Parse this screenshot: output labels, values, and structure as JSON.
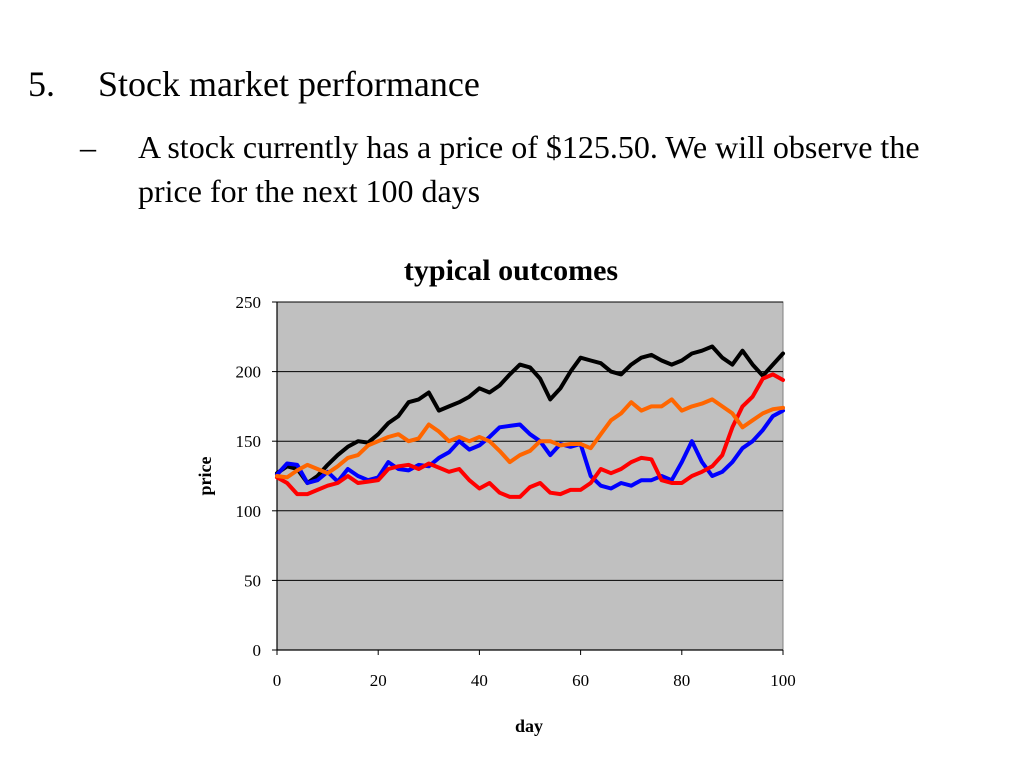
{
  "slide": {
    "bullet_number": "5.",
    "bullet_text": "Stock market performance",
    "sub_dash": "–",
    "sub_text": "A stock currently has a price of $125.50. We will observe the price for the next 100 days"
  },
  "chart_data": {
    "type": "line",
    "title": "typical outcomes",
    "xlabel": "day",
    "ylabel": "price",
    "xlim": [
      0,
      100
    ],
    "ylim": [
      0,
      250
    ],
    "xticks": [
      0,
      20,
      40,
      60,
      80,
      100
    ],
    "yticks": [
      0,
      50,
      100,
      150,
      200,
      250
    ],
    "grid": "horizontal",
    "plot_background": "#c0c0c0",
    "series": [
      {
        "color": "#000000",
        "x": [
          0,
          2,
          4,
          6,
          8,
          10,
          12,
          14,
          16,
          18,
          20,
          22,
          24,
          26,
          28,
          30,
          32,
          34,
          36,
          38,
          40,
          42,
          44,
          46,
          48,
          50,
          52,
          54,
          56,
          58,
          60,
          62,
          64,
          66,
          68,
          70,
          72,
          74,
          76,
          78,
          80,
          82,
          84,
          86,
          88,
          90,
          92,
          94,
          96,
          98,
          100
        ],
        "y": [
          127,
          132,
          130,
          120,
          125,
          133,
          140,
          146,
          150,
          149,
          155,
          163,
          168,
          178,
          180,
          185,
          172,
          175,
          178,
          182,
          188,
          185,
          190,
          198,
          205,
          203,
          195,
          180,
          188,
          200,
          210,
          208,
          206,
          200,
          198,
          205,
          210,
          212,
          208,
          205,
          208,
          213,
          215,
          218,
          210,
          205,
          215,
          205,
          197,
          205,
          213
        ]
      },
      {
        "color": "#0000ff",
        "x": [
          0,
          2,
          4,
          6,
          8,
          10,
          12,
          14,
          16,
          18,
          20,
          22,
          24,
          26,
          28,
          30,
          32,
          34,
          36,
          38,
          40,
          42,
          44,
          46,
          48,
          50,
          52,
          54,
          56,
          58,
          60,
          62,
          64,
          66,
          68,
          70,
          72,
          74,
          76,
          78,
          80,
          82,
          84,
          86,
          88,
          90,
          92,
          94,
          96,
          98,
          100
        ],
        "y": [
          126,
          134,
          133,
          120,
          122,
          128,
          121,
          130,
          125,
          122,
          124,
          135,
          130,
          129,
          133,
          132,
          138,
          142,
          150,
          144,
          147,
          153,
          160,
          161,
          162,
          155,
          150,
          140,
          148,
          146,
          148,
          125,
          118,
          116,
          120,
          118,
          122,
          122,
          125,
          122,
          135,
          150,
          135,
          125,
          128,
          135,
          145,
          150,
          158,
          168,
          172
        ]
      },
      {
        "color": "#ff0000",
        "x": [
          0,
          2,
          4,
          6,
          8,
          10,
          12,
          14,
          16,
          18,
          20,
          22,
          24,
          26,
          28,
          30,
          32,
          34,
          36,
          38,
          40,
          42,
          44,
          46,
          48,
          50,
          52,
          54,
          56,
          58,
          60,
          62,
          64,
          66,
          68,
          70,
          72,
          74,
          76,
          78,
          80,
          82,
          84,
          86,
          88,
          90,
          92,
          94,
          96,
          98,
          100
        ],
        "y": [
          124,
          120,
          112,
          112,
          115,
          118,
          120,
          125,
          120,
          121,
          122,
          130,
          132,
          133,
          130,
          134,
          131,
          128,
          130,
          122,
          116,
          120,
          113,
          110,
          110,
          117,
          120,
          113,
          112,
          115,
          115,
          120,
          130,
          127,
          130,
          135,
          138,
          137,
          122,
          120,
          120,
          125,
          128,
          132,
          140,
          160,
          175,
          182,
          195,
          198,
          194
        ]
      },
      {
        "color": "#ff6600",
        "x": [
          0,
          2,
          4,
          6,
          8,
          10,
          12,
          14,
          16,
          18,
          20,
          22,
          24,
          26,
          28,
          30,
          32,
          34,
          36,
          38,
          40,
          42,
          44,
          46,
          48,
          50,
          52,
          54,
          56,
          58,
          60,
          62,
          64,
          66,
          68,
          70,
          72,
          74,
          76,
          78,
          80,
          82,
          84,
          86,
          88,
          90,
          92,
          94,
          96,
          98,
          100
        ],
        "y": [
          125,
          124,
          129,
          133,
          130,
          127,
          132,
          138,
          140,
          147,
          150,
          153,
          155,
          150,
          152,
          162,
          157,
          150,
          153,
          150,
          153,
          150,
          143,
          135,
          140,
          143,
          150,
          150,
          147,
          148,
          148,
          145,
          155,
          165,
          170,
          178,
          172,
          175,
          175,
          180,
          172,
          175,
          177,
          180,
          175,
          170,
          160,
          165,
          170,
          173,
          174
        ]
      }
    ]
  }
}
